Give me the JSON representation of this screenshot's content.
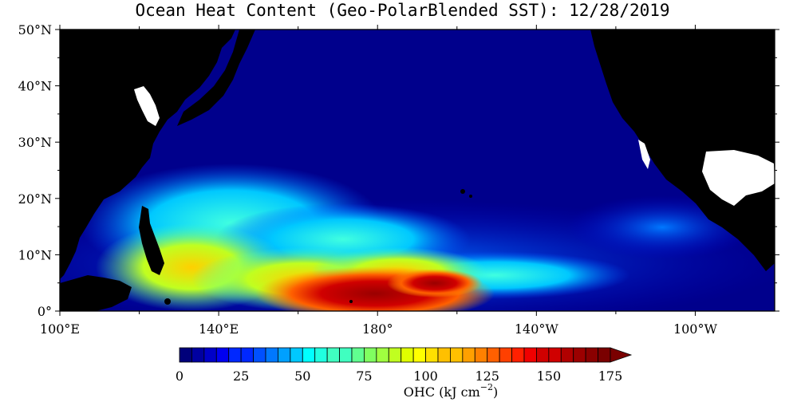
{
  "title": "Ocean Heat Content (Geo-PolarBlended SST): 12/28/2019",
  "map": {
    "lat_labels": [
      "50°N",
      "40°N",
      "30°N",
      "20°N",
      "10°N",
      "0°"
    ],
    "lon_labels": [
      "100°E",
      "140°E",
      "180°",
      "140°W",
      "100°W"
    ]
  },
  "colorbar": {
    "tick_labels": [
      "0",
      "25",
      "50",
      "75",
      "100",
      "125",
      "150",
      "175"
    ],
    "min": 0,
    "max": 175,
    "step": 5,
    "label_main": "OHC (kJ cm",
    "label_sup": "−2",
    "label_end": ")",
    "colors": [
      "#00007a",
      "#0000a0",
      "#0000c8",
      "#0000f0",
      "#0028ff",
      "#0050ff",
      "#0078ff",
      "#00a0ff",
      "#00c8ff",
      "#00ffff",
      "#20ffe0",
      "#40ffc0",
      "#60ff90",
      "#80ff60",
      "#a0ff40",
      "#c0ff20",
      "#e0ff00",
      "#ffff00",
      "#ffe000",
      "#ffc000",
      "#ffa000",
      "#ff8000",
      "#ff6000",
      "#ff4000",
      "#ff2000",
      "#f00000",
      "#d00000",
      "#b00000",
      "#9c0000",
      "#8a0000",
      "#7a0000"
    ]
  }
}
